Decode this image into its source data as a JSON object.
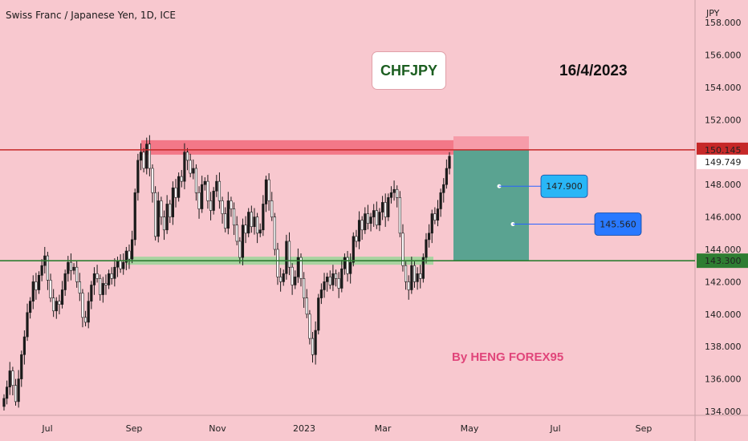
{
  "header": {
    "title": "Swiss Franc / Japanese Yen, 1D, ICE"
  },
  "annotations": {
    "symbol_box": "CHFJPY",
    "date": "16/4/2023",
    "author": "By HENG FOREX95"
  },
  "colors": {
    "background": "#f8c8cf",
    "up_candle": "#1a1a1a",
    "resistance": "#c62828",
    "support": "#2e7d32",
    "resistance_zone": "#f26a7b",
    "support_zone": "#9fd49a",
    "take_profit_zone": "#5aa391",
    "stop_zone": "#f59aa6",
    "target_label": "#29b6f6",
    "target_label_2": "#2979ff"
  },
  "chart_data": {
    "type": "candlestick",
    "y_axis_unit": "JPY",
    "ylim": [
      134.0,
      159.0
    ],
    "y_ticks": [
      "158.000",
      "156.000",
      "154.000",
      "152.000",
      "150.000",
      "148.000",
      "146.000",
      "144.000",
      "142.000",
      "140.000",
      "138.000",
      "136.000",
      "134.000"
    ],
    "x_ticks": [
      "Jul",
      "Sep",
      "Nov",
      "2023",
      "Mar",
      "May",
      "Jul",
      "Sep"
    ],
    "price_labels": {
      "resistance": "150.145",
      "current": "149.749",
      "support": "143.300"
    },
    "levels": {
      "resistance": 150.145,
      "support": 143.3
    },
    "targets": [
      {
        "label": "147.900",
        "value": 147.9
      },
      {
        "label": "145.560",
        "value": 145.56
      }
    ],
    "closes": [
      134.8,
      135.5,
      136.5,
      135.6,
      134.6,
      136.0,
      137.5,
      138.6,
      140.1,
      140.8,
      142.0,
      141.5,
      142.4,
      143.0,
      143.6,
      142.1,
      141.0,
      140.2,
      140.8,
      140.6,
      141.5,
      142.5,
      143.2,
      142.7,
      142.9,
      142.0,
      141.3,
      139.8,
      139.5,
      140.8,
      141.8,
      142.5,
      142.2,
      141.2,
      141.9,
      141.8,
      142.5,
      142.2,
      142.9,
      143.3,
      142.8,
      143.2,
      143.9,
      143.4,
      144.6,
      147.5,
      149.5,
      150.0,
      149.0,
      150.5,
      149.0,
      147.5,
      144.8,
      147.0,
      146.0,
      145.2,
      146.8,
      146.0,
      147.8,
      147.2,
      148.5,
      148.2,
      150.0,
      149.5,
      148.7,
      149.0,
      147.5,
      146.5,
      148.0,
      148.2,
      147.0,
      146.4,
      147.6,
      148.2,
      147.0,
      146.2,
      145.3,
      147.0,
      146.5,
      145.5,
      144.5,
      143.5,
      145.5,
      145.0,
      146.3,
      145.4,
      146.0,
      145.0,
      145.2,
      146.8,
      148.3,
      147.0,
      146.0,
      144.0,
      142.3,
      142.0,
      142.5,
      144.5,
      142.9,
      141.8,
      142.3,
      143.5,
      142.2,
      141.0,
      140.0,
      138.5,
      137.5,
      139.0,
      141.0,
      141.5,
      142.0,
      142.3,
      141.8,
      142.5,
      142.2,
      141.6,
      142.8,
      143.5,
      142.5,
      143.2,
      144.8,
      144.5,
      145.8,
      145.2,
      146.2,
      145.6,
      146.0,
      146.4,
      145.5,
      146.3,
      146.9,
      146.0,
      147.2,
      147.5,
      147.7,
      147.2,
      145.0,
      143.0,
      142.0,
      141.5,
      143.0,
      142.0,
      142.5,
      142.2,
      143.5,
      144.6,
      145.0,
      146.2,
      145.8,
      146.5,
      147.5,
      148.0,
      149.0,
      149.75
    ]
  }
}
